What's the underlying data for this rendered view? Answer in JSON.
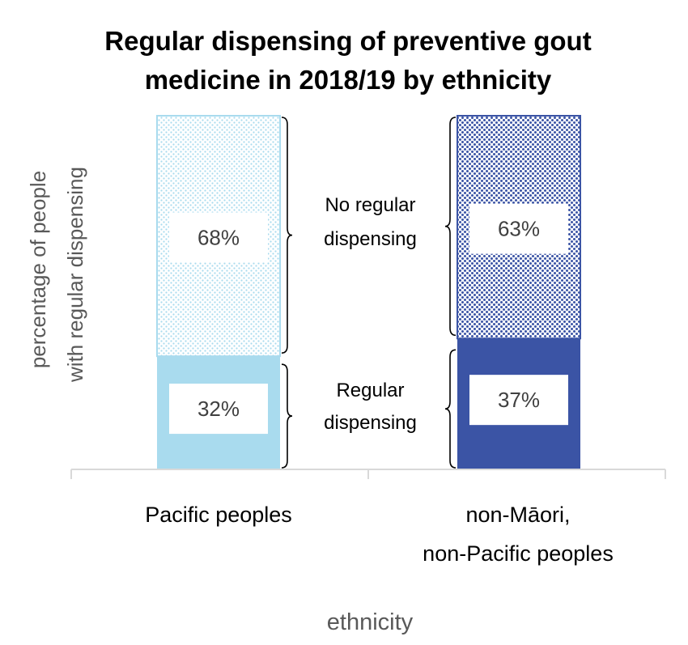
{
  "chart_data": {
    "type": "bar",
    "stacked": true,
    "title_lines": [
      "Regular dispensing of preventive gout",
      "medicine in 2018/19 by ethnicity"
    ],
    "xlabel": "ethnicity",
    "ylabel_lines": [
      "percentage of people",
      "with regular dispensing"
    ],
    "categories": [
      {
        "lines": [
          "Pacific peoples"
        ]
      },
      {
        "lines": [
          "non-Māori,",
          "non-Pacific peoples"
        ]
      }
    ],
    "series": [
      {
        "key": "regular",
        "values": [
          32,
          37
        ],
        "labels": [
          "32%",
          "37%"
        ]
      },
      {
        "key": "no_regular",
        "values": [
          68,
          63
        ],
        "labels": [
          "68%",
          "63%"
        ]
      }
    ],
    "colors": {
      "pacific": "#a9dbee",
      "non_pacific": "#3b54a5",
      "axis": "#d9d9d9"
    },
    "ylim": [
      0,
      100
    ],
    "grid": false,
    "legend": "none",
    "annotations": {
      "no_regular": [
        "No regular",
        "dispensing"
      ],
      "regular": [
        "Regular",
        "dispensing"
      ]
    }
  }
}
